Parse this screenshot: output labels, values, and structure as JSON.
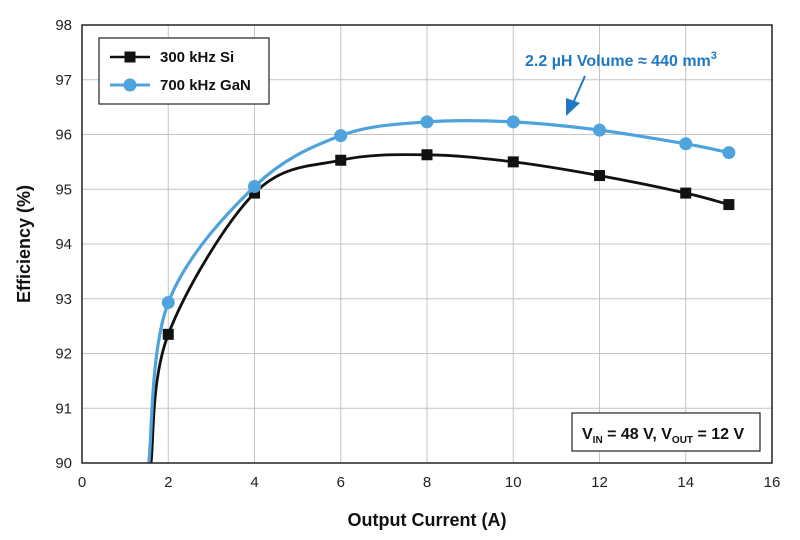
{
  "chart_data": {
    "type": "line",
    "xlabel": "Output Current (A)",
    "ylabel": "Efficiency (%)",
    "xlim": [
      0,
      16
    ],
    "ylim": [
      90,
      98
    ],
    "xticks": [
      0,
      2,
      4,
      6,
      8,
      10,
      12,
      14,
      16
    ],
    "yticks": [
      90,
      91,
      92,
      93,
      94,
      95,
      96,
      97,
      98
    ],
    "grid": true,
    "legend_position": "top-left",
    "series": [
      {
        "name": "300 kHz Si",
        "color": "#111111",
        "marker": "square",
        "x": [
          2,
          4,
          6,
          8,
          10,
          12,
          14,
          15
        ],
        "y": [
          92.35,
          94.93,
          95.53,
          95.63,
          95.5,
          95.25,
          94.93,
          94.72
        ],
        "curve_start": [
          1.6,
          90
        ]
      },
      {
        "name": "700 kHz GaN",
        "color": "#4fa3dc",
        "marker": "circle",
        "x": [
          2,
          4,
          6,
          8,
          10,
          12,
          14,
          15
        ],
        "y": [
          92.93,
          95.05,
          95.98,
          96.23,
          96.23,
          96.08,
          95.83,
          95.67
        ],
        "curve_start": [
          1.55,
          90
        ]
      }
    ],
    "annotation": {
      "text": "2.2 µH Volume ≈ 440 mm",
      "superscript": "3",
      "color": "#1f78c1"
    },
    "conditions": {
      "v1": "V",
      "v1_sub": "IN",
      "v1_rest": " = 48 V, ",
      "v2": "V",
      "v2_sub": "OUT",
      "v2_rest": " = 12 V"
    }
  }
}
